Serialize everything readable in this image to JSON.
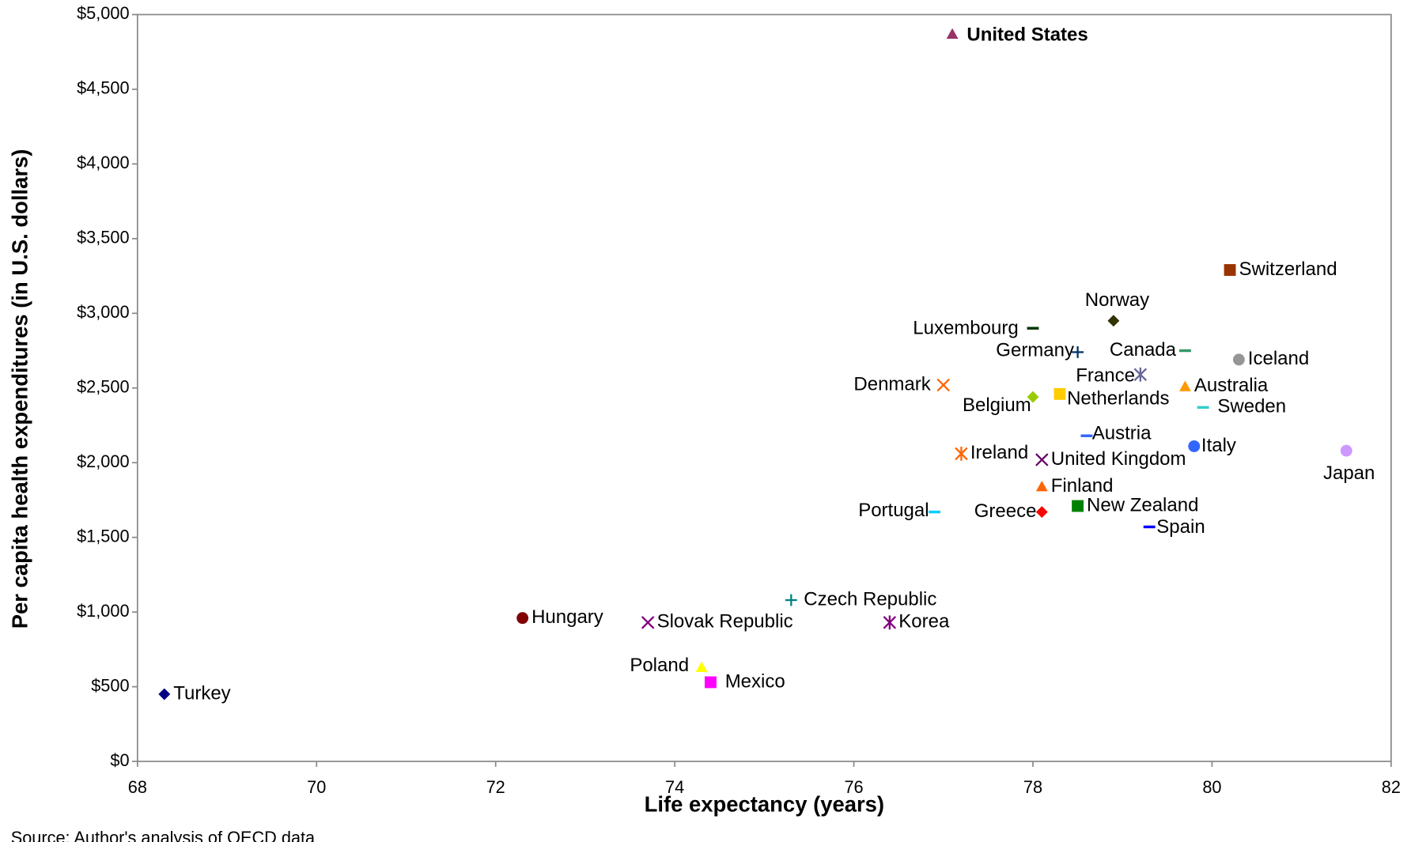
{
  "chart_data": {
    "type": "scatter",
    "x_label": "Life expectancy (years)",
    "y_label": "Per capita health expenditures (in U.S. dollars)",
    "source": "Source: Author's analysis of OECD data",
    "xlim": [
      68,
      82
    ],
    "xticks": [
      68,
      70,
      72,
      74,
      76,
      78,
      80,
      82
    ],
    "ylim": [
      0,
      5000
    ],
    "yticks": [
      {
        "value": 0,
        "label": "$0"
      },
      {
        "value": 500,
        "label": "$500"
      },
      {
        "value": 1000,
        "label": "$1,000"
      },
      {
        "value": 1500,
        "label": "$1,500"
      },
      {
        "value": 2000,
        "label": "$2,000"
      },
      {
        "value": 2500,
        "label": "$2,500"
      },
      {
        "value": 3000,
        "label": "$3,000"
      },
      {
        "value": 3500,
        "label": "$3,500"
      },
      {
        "value": 4000,
        "label": "$4,000"
      },
      {
        "value": 4500,
        "label": "$4,500"
      },
      {
        "value": 5000,
        "label": "$5,000"
      }
    ],
    "grid": false,
    "series": [
      {
        "name": "United States",
        "color": "#993366",
        "marker": "triangle",
        "x": 77.1,
        "y": 4870,
        "bold": true
      },
      {
        "name": "Switzerland",
        "color": "#993300",
        "marker": "square",
        "x": 80.2,
        "y": 3290
      },
      {
        "name": "Norway",
        "color": "#333300",
        "marker": "diamond",
        "x": 78.9,
        "y": 2950
      },
      {
        "name": "Luxembourg",
        "color": "#003300",
        "marker": "dash",
        "x": 78.0,
        "y": 2900
      },
      {
        "name": "Germany",
        "color": "#003366",
        "marker": "plus",
        "x": 78.5,
        "y": 2740
      },
      {
        "name": "Canada",
        "color": "#339966",
        "marker": "dash",
        "x": 79.7,
        "y": 2750
      },
      {
        "name": "Iceland",
        "color": "#969696",
        "marker": "circle",
        "x": 80.3,
        "y": 2690
      },
      {
        "name": "France",
        "color": "#666699",
        "marker": "asterisk",
        "x": 79.2,
        "y": 2590
      },
      {
        "name": "Australia",
        "color": "#FF9900",
        "marker": "triangle",
        "x": 79.7,
        "y": 2510
      },
      {
        "name": "Denmark",
        "color": "#FF6600",
        "marker": "x",
        "x": 77.0,
        "y": 2520
      },
      {
        "name": "Belgium",
        "color": "#99CC00",
        "marker": "diamond",
        "x": 78.0,
        "y": 2440
      },
      {
        "name": "Netherlands",
        "color": "#FFCC00",
        "marker": "square",
        "x": 78.3,
        "y": 2460
      },
      {
        "name": "Sweden",
        "color": "#33CCCC",
        "marker": "dash",
        "x": 79.9,
        "y": 2370
      },
      {
        "name": "Austria",
        "color": "#3366FF",
        "marker": "dash",
        "x": 78.6,
        "y": 2180
      },
      {
        "name": "Italy",
        "color": "#3366FF",
        "marker": "circle",
        "x": 79.8,
        "y": 2110
      },
      {
        "name": "Japan",
        "color": "#CC99FF",
        "marker": "circle",
        "x": 81.5,
        "y": 2080
      },
      {
        "name": "Ireland",
        "color": "#FF6600",
        "marker": "asterisk",
        "x": 77.2,
        "y": 2060
      },
      {
        "name": "United Kingdom",
        "color": "#660066",
        "marker": "x",
        "x": 78.1,
        "y": 2020
      },
      {
        "name": "Finland",
        "color": "#FF6600",
        "marker": "triangle",
        "x": 78.1,
        "y": 1840
      },
      {
        "name": "New Zealand",
        "color": "#008000",
        "marker": "square",
        "x": 78.5,
        "y": 1710
      },
      {
        "name": "Portugal",
        "color": "#00CCFF",
        "marker": "dash",
        "x": 76.9,
        "y": 1670
      },
      {
        "name": "Greece",
        "color": "#FF0000",
        "marker": "diamond",
        "x": 78.1,
        "y": 1670
      },
      {
        "name": "Spain",
        "color": "#0000FF",
        "marker": "dash",
        "x": 79.3,
        "y": 1570
      },
      {
        "name": "Czech Republic",
        "color": "#008080",
        "marker": "plus",
        "x": 75.3,
        "y": 1080
      },
      {
        "name": "Hungary",
        "color": "#800000",
        "marker": "circle",
        "x": 72.3,
        "y": 960
      },
      {
        "name": "Slovak Republic",
        "color": "#800080",
        "marker": "x",
        "x": 73.7,
        "y": 930
      },
      {
        "name": "Korea",
        "color": "#800080",
        "marker": "asterisk",
        "x": 76.4,
        "y": 930
      },
      {
        "name": "Poland",
        "color": "#FFFF00",
        "marker": "triangle",
        "x": 74.3,
        "y": 630
      },
      {
        "name": "Mexico",
        "color": "#FF00FF",
        "marker": "square",
        "x": 74.4,
        "y": 530
      },
      {
        "name": "Turkey",
        "color": "#000080",
        "marker": "diamond",
        "x": 68.3,
        "y": 450
      }
    ]
  }
}
